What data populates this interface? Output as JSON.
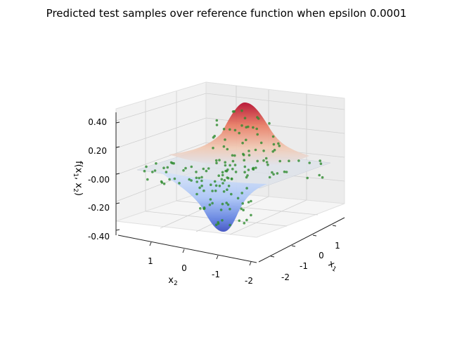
{
  "chart_data": {
    "type": "surface3d+scatter",
    "title": "Predicted test samples over reference function when epsilon 0.0001",
    "xlabel": "x_1",
    "ylabel": "x_2",
    "zlabel": "f(x_1, x_2)",
    "x_ticks": [
      "-2",
      "-1",
      "0",
      "1"
    ],
    "y_ticks": [
      "1",
      "0",
      "-1",
      "-2"
    ],
    "z_ticks": [
      "0.40",
      "0.20",
      "-0.00",
      "-0.20",
      "-0.40"
    ],
    "zlim": [
      -0.4,
      0.4
    ],
    "surface": {
      "description": "smooth surface with a positive peak and a negative trough",
      "peak": {
        "x1": 0.7,
        "x2": -0.7,
        "z": 0.45
      },
      "trough": {
        "x1": -0.7,
        "x2": 0.7,
        "z": -0.45
      },
      "colormap": "coolwarm"
    },
    "scatter_series": {
      "color": "#2e8b2e",
      "points_description": "test predictions plotted as green dots on the surface"
    },
    "grid": true
  }
}
